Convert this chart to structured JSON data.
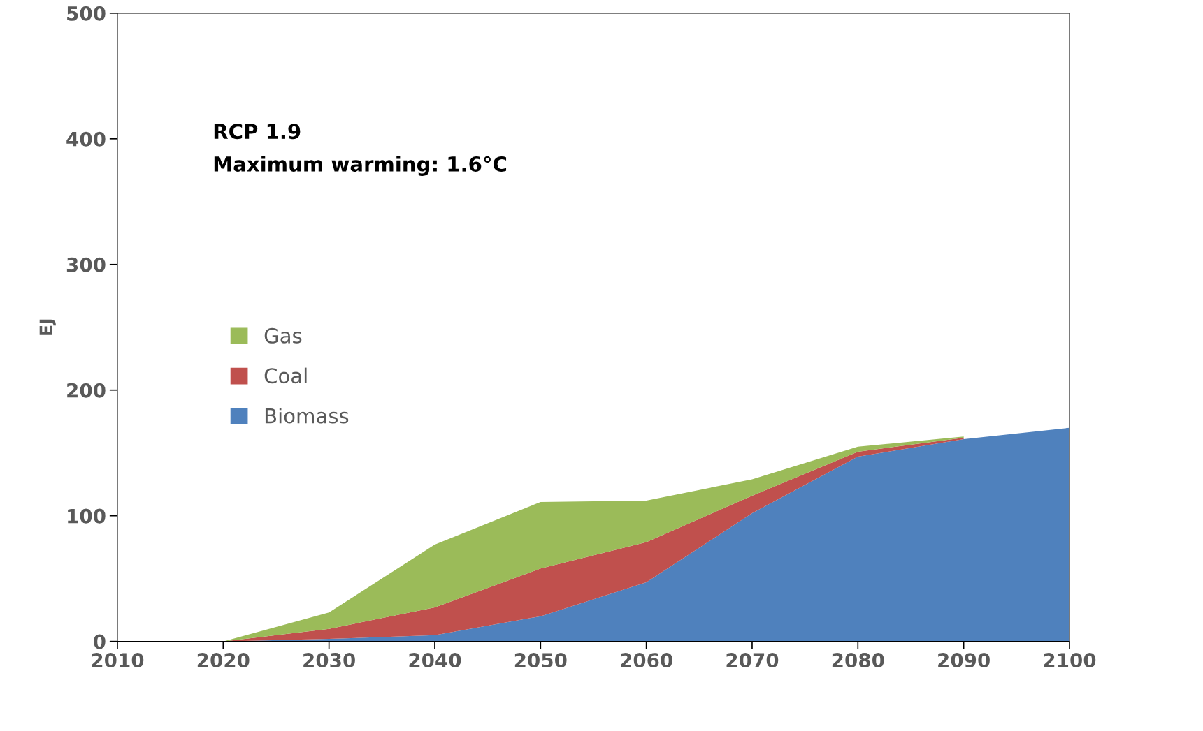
{
  "chart_data": {
    "type": "area",
    "stacked": true,
    "ylabel": "EJ",
    "x": [
      2020,
      2030,
      2040,
      2050,
      2060,
      2070,
      2080,
      2090,
      2100
    ],
    "series": [
      {
        "name": "Biomass",
        "color": "#4f81bd",
        "values": [
          0,
          2,
          5,
          20,
          47,
          102,
          147,
          161,
          170
        ]
      },
      {
        "name": "Coal",
        "color": "#c0504d",
        "x": [
          2020,
          2030,
          2040,
          2050,
          2060,
          2070,
          2080,
          2090
        ],
        "values": [
          0,
          8,
          22,
          38,
          32,
          14,
          4,
          1
        ]
      },
      {
        "name": "Gas",
        "color": "#9bbb59",
        "x": [
          2020,
          2030,
          2040,
          2050,
          2060,
          2070,
          2080,
          2090
        ],
        "values": [
          0,
          13,
          50,
          53,
          33,
          13,
          4,
          1
        ]
      }
    ],
    "xlim": [
      2010,
      2100
    ],
    "xticks": [
      2010,
      2020,
      2030,
      2040,
      2050,
      2060,
      2070,
      2080,
      2090,
      2100
    ],
    "ylim": [
      0,
      500
    ],
    "yticks": [
      0,
      100,
      200,
      300,
      400,
      500
    ],
    "annotations": [
      "RCP 1.9",
      "Maximum warming: 1.6°C"
    ],
    "grid": false,
    "legend": "center left"
  }
}
